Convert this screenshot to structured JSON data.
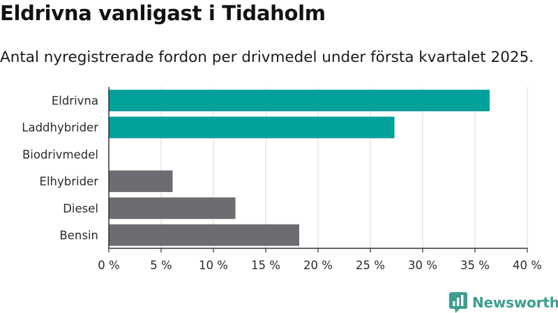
{
  "title": "Eldrivna vanligast i Tidaholm",
  "subtitle": "Antal nyregistrerade fordon per drivmedel under första kvartalet 2025.",
  "brand": {
    "name": "Newsworthy",
    "icon": "newsworthy-logo-icon",
    "color": "#3d9e91"
  },
  "colors": {
    "highlight": "#00a19a",
    "default": "#6d6c72",
    "grid": "#d9d9d9",
    "axis": "#333333"
  },
  "chart_data": {
    "type": "bar",
    "orientation": "horizontal",
    "categories": [
      "Eldrivna",
      "Laddhybrider",
      "Biodrivmedel",
      "Elhybrider",
      "Diesel",
      "Bensin"
    ],
    "values": [
      36.4,
      27.3,
      0,
      6.1,
      12.1,
      18.2
    ],
    "highlighted": [
      true,
      true,
      false,
      false,
      false,
      false
    ],
    "xlim": [
      0,
      40
    ],
    "xticks": [
      0,
      5,
      10,
      15,
      20,
      25,
      30,
      35,
      40
    ],
    "xtick_labels": [
      "0 %",
      "5 %",
      "10 %",
      "15 %",
      "20 %",
      "25 %",
      "30 %",
      "35 %",
      "40 %"
    ],
    "grid": "vertical"
  }
}
